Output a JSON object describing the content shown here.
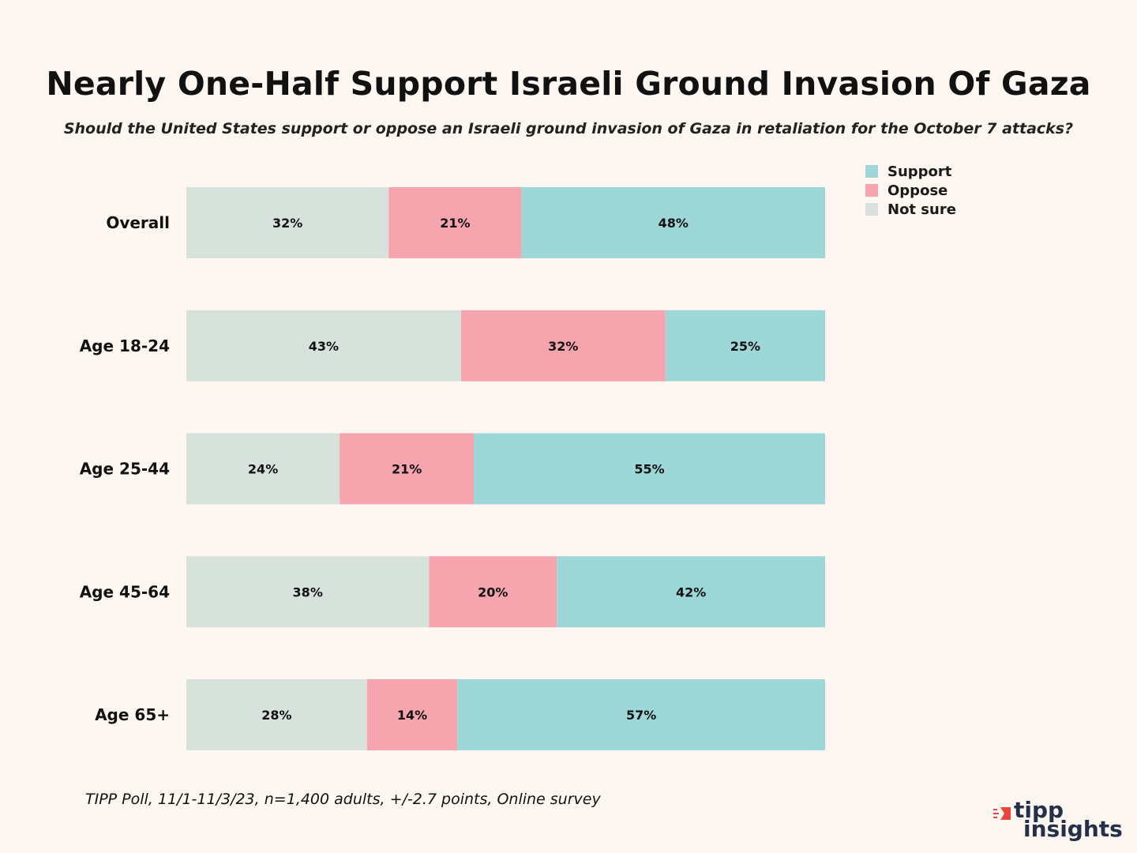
{
  "chart_data": {
    "type": "bar",
    "orientation": "horizontal-stacked",
    "title": "Nearly One-Half Support Israeli Ground Invasion Of Gaza",
    "subtitle": "Should the United States support or oppose an Israeli ground invasion of Gaza in retaliation for the October 7 attacks?",
    "categories": [
      "Overall",
      "Age 18-24",
      "Age 25-44",
      "Age 45-64",
      "Age 65+"
    ],
    "series": [
      {
        "name": "Not sure",
        "values": [
          32,
          43,
          24,
          38,
          28
        ],
        "color": "#d8e2dc"
      },
      {
        "name": "Oppose",
        "values": [
          21,
          32,
          21,
          20,
          14
        ],
        "color": "#f6a4ae"
      },
      {
        "name": "Support",
        "values": [
          48,
          25,
          55,
          42,
          57
        ],
        "color": "#9ed7d7"
      }
    ],
    "value_suffix": "%",
    "legend": [
      "Support",
      "Oppose",
      "Not sure"
    ],
    "legend_position": "top-right",
    "xlabel": "",
    "ylabel": "",
    "grid": false
  },
  "footnote": "TIPP Poll, 11/1-11/3/23, n=1,400 adults, +/-2.7 points, Online survey",
  "logo": {
    "line1": "tipp",
    "line2": "insights",
    "accent_color": "#e8453c",
    "text_color": "#24304a"
  }
}
